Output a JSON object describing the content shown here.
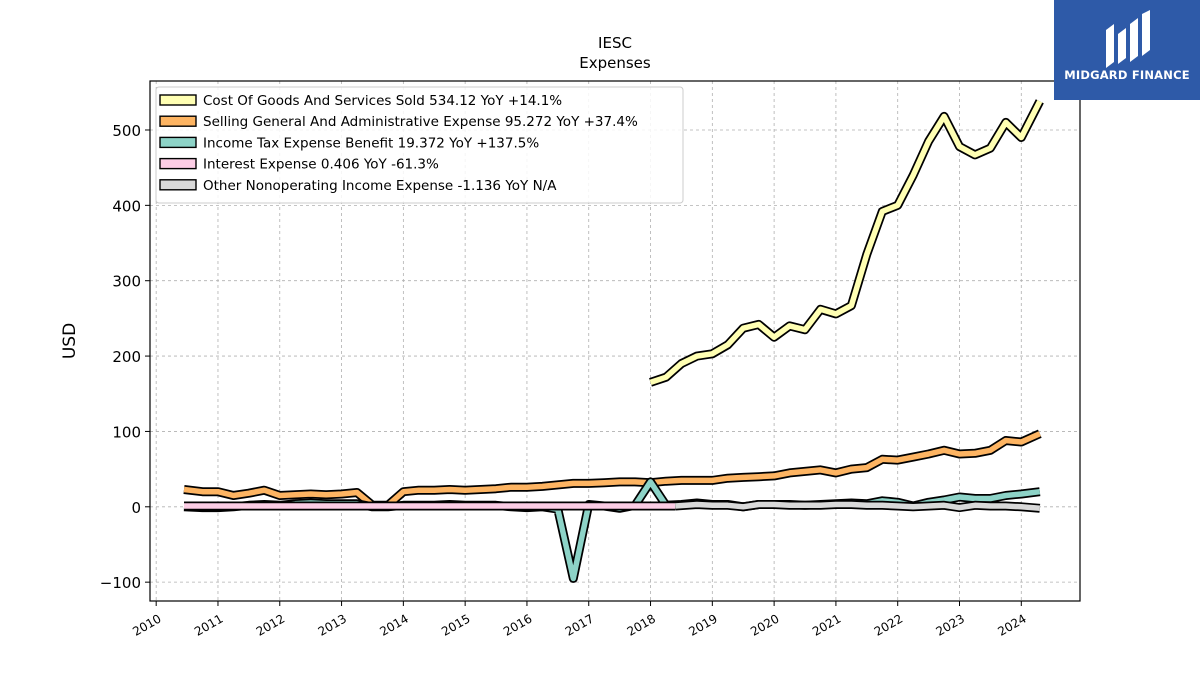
{
  "chart_data": {
    "type": "line",
    "title": "IESC",
    "subtitle": "Expenses",
    "ylabel": "USD",
    "xlabel": "",
    "ylim": [
      -125,
      565
    ],
    "xlim": [
      2009.9,
      2024.95
    ],
    "yticks": [
      -100,
      0,
      100,
      200,
      300,
      400,
      500
    ],
    "ytick_labels": [
      "−100",
      "0",
      "100",
      "200",
      "300",
      "400",
      "500"
    ],
    "xticks": [
      2010,
      2011,
      2012,
      2013,
      2014,
      2015,
      2016,
      2017,
      2018,
      2019,
      2020,
      2021,
      2022,
      2023,
      2024
    ],
    "xtick_labels": [
      "2010",
      "2011",
      "2012",
      "2013",
      "2014",
      "2015",
      "2016",
      "2017",
      "2018",
      "2019",
      "2020",
      "2021",
      "2022",
      "2023",
      "2024"
    ],
    "grid": true,
    "legend_position": "top-left",
    "series": [
      {
        "name": "Cost Of Goods And Services Sold",
        "legend_label": "Cost Of Goods And Services Sold  534.12 YoY +14.1%",
        "color": "#ffffb3",
        "points": [
          [
            2018.0,
            165
          ],
          [
            2018.25,
            172
          ],
          [
            2018.5,
            190
          ],
          [
            2018.75,
            200
          ],
          [
            2019.0,
            203
          ],
          [
            2019.25,
            215
          ],
          [
            2019.5,
            237
          ],
          [
            2019.75,
            242
          ],
          [
            2020.0,
            225
          ],
          [
            2020.25,
            240
          ],
          [
            2020.5,
            235
          ],
          [
            2020.75,
            262
          ],
          [
            2021.0,
            256
          ],
          [
            2021.25,
            267
          ],
          [
            2021.5,
            335
          ],
          [
            2021.75,
            392
          ],
          [
            2022.0,
            400
          ],
          [
            2022.25,
            440
          ],
          [
            2022.5,
            485
          ],
          [
            2022.75,
            518
          ],
          [
            2023.0,
            478
          ],
          [
            2023.25,
            467
          ],
          [
            2023.5,
            476
          ],
          [
            2023.75,
            510
          ],
          [
            2024.0,
            490
          ],
          [
            2024.3,
            538
          ]
        ]
      },
      {
        "name": "Selling General And Administrative Expense",
        "legend_label": "Selling General And Administrative Expense  95.272 YoY +37.4%",
        "color": "#fdb462",
        "points": [
          [
            2010.45,
            23
          ],
          [
            2010.75,
            20
          ],
          [
            2011.0,
            20
          ],
          [
            2011.25,
            15
          ],
          [
            2011.5,
            18
          ],
          [
            2011.75,
            22
          ],
          [
            2012.0,
            15
          ],
          [
            2012.25,
            16
          ],
          [
            2012.5,
            17
          ],
          [
            2012.75,
            16
          ],
          [
            2013.0,
            17
          ],
          [
            2013.25,
            19
          ],
          [
            2013.5,
            2
          ],
          [
            2013.75,
            2
          ],
          [
            2014.0,
            20
          ],
          [
            2014.25,
            22
          ],
          [
            2014.5,
            22
          ],
          [
            2014.75,
            23
          ],
          [
            2015.0,
            22
          ],
          [
            2015.25,
            23
          ],
          [
            2015.5,
            24
          ],
          [
            2015.75,
            26
          ],
          [
            2016.0,
            26
          ],
          [
            2016.25,
            27
          ],
          [
            2016.5,
            29
          ],
          [
            2016.75,
            31
          ],
          [
            2017.0,
            31
          ],
          [
            2017.25,
            32
          ],
          [
            2017.5,
            33
          ],
          [
            2017.75,
            33
          ],
          [
            2018.0,
            32
          ],
          [
            2018.25,
            34
          ],
          [
            2018.5,
            35
          ],
          [
            2018.75,
            35
          ],
          [
            2019.0,
            35
          ],
          [
            2019.25,
            38
          ],
          [
            2019.5,
            39
          ],
          [
            2019.75,
            40
          ],
          [
            2020.0,
            41
          ],
          [
            2020.25,
            45
          ],
          [
            2020.5,
            47
          ],
          [
            2020.75,
            49
          ],
          [
            2021.0,
            45
          ],
          [
            2021.25,
            50
          ],
          [
            2021.5,
            52
          ],
          [
            2021.75,
            63
          ],
          [
            2022.0,
            62
          ],
          [
            2022.25,
            66
          ],
          [
            2022.5,
            70
          ],
          [
            2022.75,
            75
          ],
          [
            2023.0,
            70
          ],
          [
            2023.25,
            71
          ],
          [
            2023.5,
            75
          ],
          [
            2023.75,
            88
          ],
          [
            2024.0,
            86
          ],
          [
            2024.3,
            97
          ]
        ]
      },
      {
        "name": "Income Tax Expense Benefit",
        "legend_label": "Income Tax Expense Benefit  19.372 YoY +137.5%",
        "color": "#8dd3c7",
        "points": [
          [
            2010.45,
            0
          ],
          [
            2010.75,
            -1
          ],
          [
            2011.0,
            -1
          ],
          [
            2011.25,
            0
          ],
          [
            2011.5,
            2
          ],
          [
            2011.75,
            3
          ],
          [
            2012.0,
            2
          ],
          [
            2012.25,
            4
          ],
          [
            2012.5,
            5
          ],
          [
            2012.75,
            4
          ],
          [
            2013.0,
            4
          ],
          [
            2013.25,
            4
          ],
          [
            2013.5,
            0
          ],
          [
            2013.75,
            0
          ],
          [
            2014.0,
            2
          ],
          [
            2014.25,
            2
          ],
          [
            2014.5,
            2
          ],
          [
            2014.75,
            3
          ],
          [
            2015.0,
            2
          ],
          [
            2015.25,
            2
          ],
          [
            2015.5,
            2
          ],
          [
            2015.75,
            0
          ],
          [
            2016.0,
            -1
          ],
          [
            2016.25,
            0
          ],
          [
            2016.5,
            -3
          ],
          [
            2016.75,
            -95
          ],
          [
            2017.0,
            3
          ],
          [
            2017.25,
            1
          ],
          [
            2017.5,
            -2
          ],
          [
            2017.75,
            2
          ],
          [
            2018.0,
            33
          ],
          [
            2018.25,
            2
          ],
          [
            2018.5,
            3
          ],
          [
            2018.75,
            5
          ],
          [
            2019.0,
            3
          ],
          [
            2019.25,
            3
          ],
          [
            2019.5,
            0
          ],
          [
            2019.75,
            3
          ],
          [
            2020.0,
            3
          ],
          [
            2020.25,
            3
          ],
          [
            2020.5,
            2
          ],
          [
            2020.75,
            3
          ],
          [
            2021.0,
            4
          ],
          [
            2021.25,
            5
          ],
          [
            2021.5,
            4
          ],
          [
            2021.75,
            8
          ],
          [
            2022.0,
            6
          ],
          [
            2022.25,
            1
          ],
          [
            2022.5,
            6
          ],
          [
            2022.75,
            9
          ],
          [
            2023.0,
            13
          ],
          [
            2023.25,
            11
          ],
          [
            2023.5,
            11
          ],
          [
            2023.75,
            15
          ],
          [
            2024.0,
            17
          ],
          [
            2024.3,
            20
          ]
        ]
      },
      {
        "name": "Interest Expense",
        "legend_label": "Interest Expense  0.406 YoY -61.3%",
        "color": "#fccde5",
        "points": [
          [
            2010.45,
            1
          ],
          [
            2011.0,
            1
          ],
          [
            2012.0,
            1
          ],
          [
            2013.0,
            1
          ],
          [
            2014.0,
            1
          ],
          [
            2015.0,
            1
          ],
          [
            2016.0,
            1
          ],
          [
            2017.0,
            1
          ],
          [
            2018.0,
            1
          ],
          [
            2018.4,
            1
          ]
        ]
      },
      {
        "name": "Other Nonoperating Income Expense",
        "legend_label": "Other Nonoperating Income Expense  -1.136 YoY N/A",
        "color": "#d9d9d9",
        "points": [
          [
            2018.4,
            1
          ],
          [
            2018.75,
            3
          ],
          [
            2019.0,
            2
          ],
          [
            2019.25,
            2
          ],
          [
            2019.5,
            0
          ],
          [
            2019.75,
            3
          ],
          [
            2020.0,
            3
          ],
          [
            2020.25,
            2
          ],
          [
            2020.5,
            2
          ],
          [
            2020.75,
            2
          ],
          [
            2021.0,
            3
          ],
          [
            2021.25,
            3
          ],
          [
            2021.5,
            2
          ],
          [
            2021.75,
            2
          ],
          [
            2022.0,
            1
          ],
          [
            2022.25,
            0
          ],
          [
            2022.5,
            1
          ],
          [
            2022.75,
            2
          ],
          [
            2023.0,
            -1
          ],
          [
            2023.25,
            2
          ],
          [
            2023.5,
            1
          ],
          [
            2023.75,
            1
          ],
          [
            2024.0,
            0
          ],
          [
            2024.3,
            -2
          ]
        ]
      }
    ]
  },
  "brand": {
    "name": "MIDGARD FINANCE",
    "icon": "midgard-logo-icon",
    "background": "#2e5aa8",
    "text_color": "#ffffff"
  }
}
